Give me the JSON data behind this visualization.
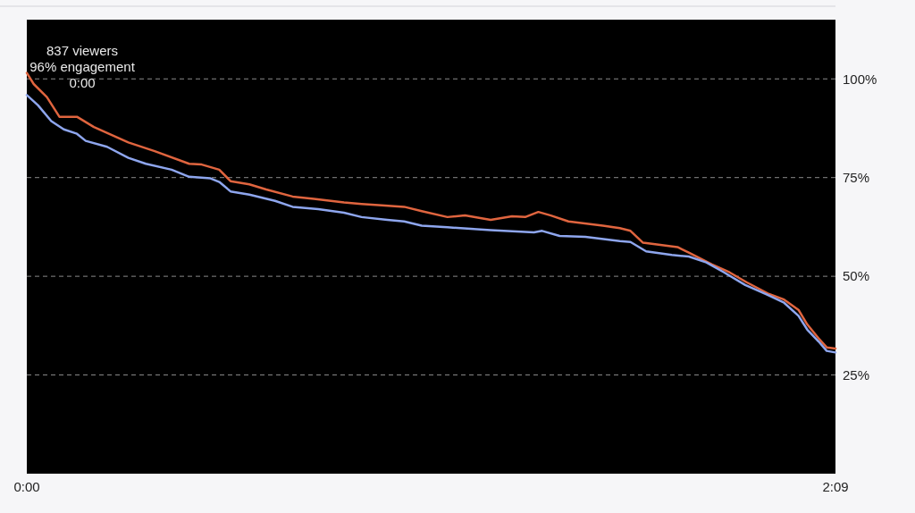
{
  "chart_data": {
    "type": "line",
    "xlim": [
      0,
      129
    ],
    "xticks": [
      {
        "value": 0,
        "label": "0:00"
      },
      {
        "value": 129,
        "label": "2:09"
      }
    ],
    "ylim": [
      0,
      115
    ],
    "yticks": [
      {
        "value": 25,
        "label": "25%"
      },
      {
        "value": 50,
        "label": "50%"
      },
      {
        "value": 75,
        "label": "75%"
      },
      {
        "value": 100,
        "label": "100%"
      }
    ],
    "grid": "y",
    "marker": "none",
    "line_style": "solid",
    "annotations": [
      {
        "text": "837 viewers\n96% engagement\n0:00",
        "x": 0,
        "y": 96
      }
    ],
    "series": [
      {
        "color": "#e0653f",
        "x": [
          0,
          1.1,
          3.2,
          5.2,
          8.0,
          10.7,
          16.2,
          20.4,
          25.9,
          27.9,
          30.7,
          32.5,
          35.5,
          38.2,
          42.4,
          45.8,
          50.6,
          53.4,
          56.1,
          60.2,
          63.0,
          67.1,
          69.9,
          74.0,
          77.4,
          79.5,
          81.6,
          83.6,
          86.4,
          91.9,
          94.6,
          96.3,
          98.3,
          103.8,
          105.6,
          109.3,
          112.1,
          114.8,
          118.4,
          120.8,
          123.1,
          124.5,
          126.3,
          127.6,
          129
        ],
        "values": [
          101.5,
          98.7,
          95.4,
          90.4,
          90.4,
          87.8,
          83.9,
          81.7,
          78.5,
          78.3,
          77,
          74.1,
          73.3,
          72,
          70.2,
          69.6,
          68.7,
          68.3,
          68,
          67.6,
          66.5,
          65,
          65.4,
          64.3,
          65.2,
          65,
          66.3,
          65.4,
          63.9,
          62.8,
          62.2,
          61.5,
          58.5,
          57.4,
          56,
          53,
          51,
          48.5,
          45.5,
          44.1,
          41.5,
          37.8,
          34.3,
          32,
          31.7
        ]
      },
      {
        "color": "#8ea6ee",
        "x": [
          0,
          1.8,
          3.9,
          5.9,
          8.0,
          9.4,
          12.8,
          16.2,
          19.0,
          23.1,
          25.9,
          29.3,
          30.7,
          32.5,
          35.5,
          39.6,
          42.4,
          46.5,
          50.6,
          53.4,
          57.5,
          60.2,
          63.0,
          67.1,
          74.0,
          80.9,
          82.2,
          85.0,
          89.1,
          94.6,
          96.3,
          98.8,
          102.9,
          105.6,
          108.4,
          111.1,
          114.6,
          118.0,
          120.8,
          123.1,
          124.5,
          126.3,
          127.6,
          129
        ],
        "values": [
          95.9,
          93.3,
          89.3,
          87.2,
          86.1,
          84.3,
          82.8,
          80,
          78.5,
          77,
          75.2,
          74.8,
          73.9,
          71.5,
          70.7,
          69.1,
          67.6,
          67,
          66.1,
          65,
          64.3,
          63.9,
          62.8,
          62.4,
          61.7,
          61.1,
          61.5,
          60.2,
          60,
          58.9,
          58.7,
          56.3,
          55.4,
          55,
          53.5,
          51.1,
          47.8,
          45.4,
          43.3,
          40,
          36.5,
          33.5,
          31.1,
          30.7
        ]
      }
    ]
  }
}
